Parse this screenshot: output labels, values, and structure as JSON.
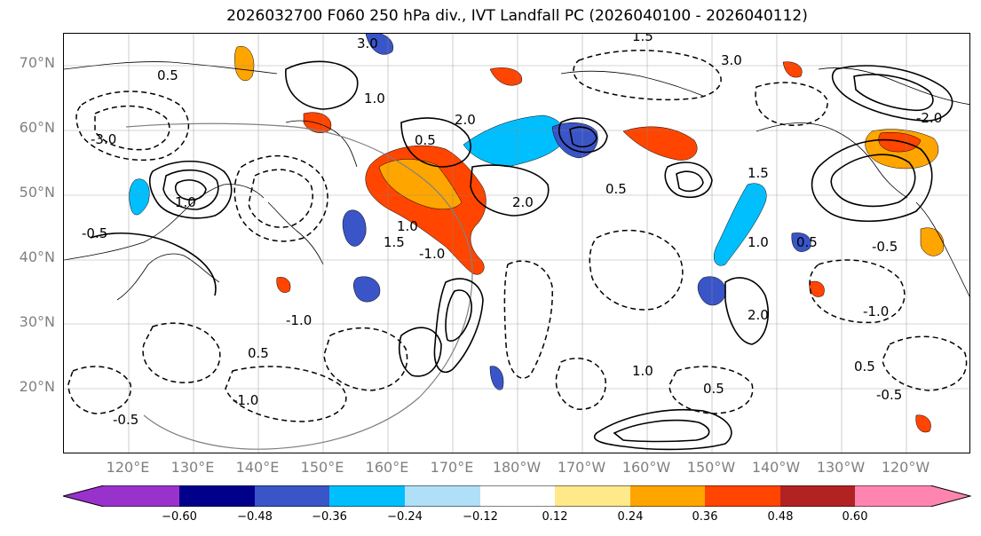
{
  "title": "2026032700 F060 250 hPa div., IVT Landfall PC (2026040100 - 2026040112)",
  "latitude_labels": [
    "70°N",
    "60°N",
    "50°N",
    "40°N",
    "30°N",
    "20°N"
  ],
  "longitude_labels": [
    "120°E",
    "130°E",
    "140°E",
    "150°E",
    "160°E",
    "170°E",
    "180°W",
    "170°W",
    "160°W",
    "150°W",
    "140°W",
    "130°W",
    "120°W"
  ],
  "contour_labels": [
    "3.0",
    "1.5",
    "0.5",
    "1.0",
    "2.0",
    "0.5",
    "3.0",
    "1.5",
    "0.5",
    "1.0",
    "-1.0",
    "2.0",
    "1.0",
    "0.5",
    "-2.0",
    "-3.0",
    "1.0",
    "-0.5",
    "-0.5",
    "-1.0",
    "0.5",
    "-1.0",
    "1.0",
    "-0.5",
    "0.5",
    "-1.0",
    "2.0",
    "-0.5",
    "1.5",
    "0.5"
  ],
  "colorbar": {
    "ticks": [
      "−0.60",
      "−0.48",
      "−0.36",
      "−0.24",
      "−0.12",
      "0.12",
      "0.24",
      "0.36",
      "0.48",
      "0.60"
    ],
    "colors": [
      "#9932cc",
      "#00008b",
      "#3a55c7",
      "#00bfff",
      "#b0e0f8",
      "#ffffff",
      "#ffe98a",
      "#ffa500",
      "#ff4500",
      "#b22222",
      "#ff85b0"
    ]
  }
}
